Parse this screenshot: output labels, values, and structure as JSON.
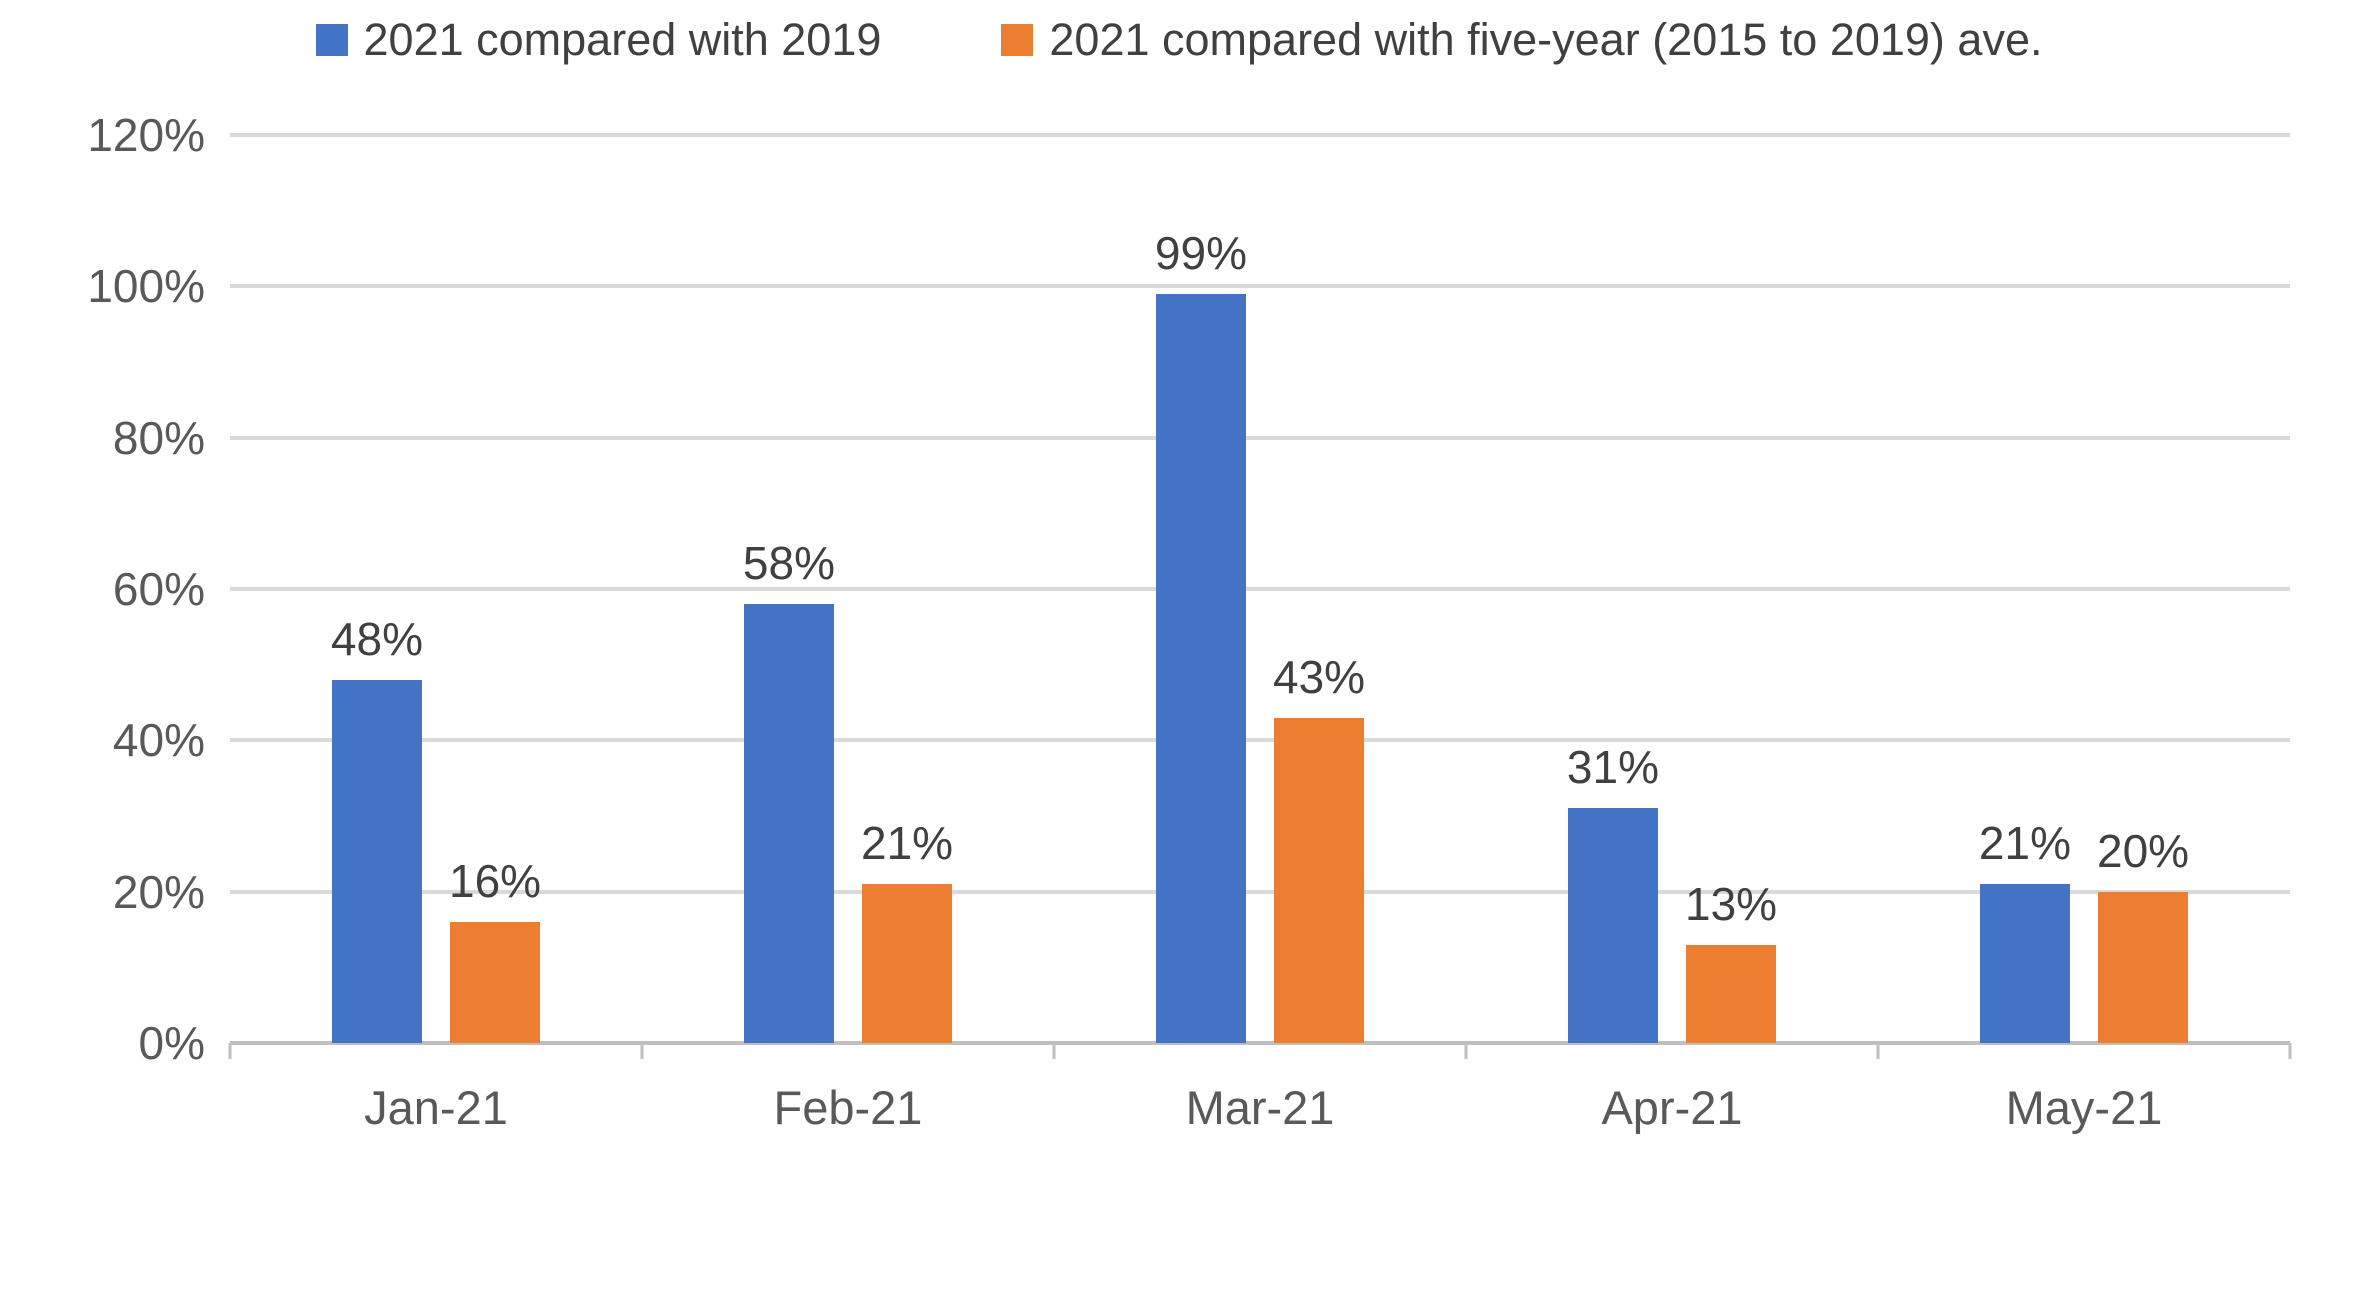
{
  "chart_data": {
    "type": "bar",
    "title": "",
    "xlabel": "",
    "ylabel": "",
    "categories": [
      "Jan-21",
      "Feb-21",
      "Mar-21",
      "Apr-21",
      "May-21"
    ],
    "series": [
      {
        "name": "2021 compared with 2019",
        "color": "#4472C4",
        "values": [
          48,
          58,
          99,
          31,
          21
        ],
        "data_labels": [
          "48%",
          "58%",
          "99%",
          "31%",
          "21%"
        ]
      },
      {
        "name": "2021 compared with five-year (2015 to 2019) ave.",
        "color": "#ED7D31",
        "values": [
          16,
          21,
          43,
          13,
          20
        ],
        "data_labels": [
          "16%",
          "21%",
          "43%",
          "13%",
          "20%"
        ]
      }
    ],
    "ylim": [
      0,
      120
    ],
    "ytick_step": 20,
    "ytick_labels": [
      "0%",
      "20%",
      "40%",
      "60%",
      "80%",
      "100%",
      "120%"
    ],
    "grid": true,
    "legend_position": "top",
    "value_suffix": "%"
  },
  "colors": {
    "series1": "#4472C4",
    "series2": "#ED7D31",
    "gridline": "#D9D9D9",
    "axis_line": "#BFBFBF",
    "axis_text": "#595959",
    "data_label_text": "#404040",
    "background": "#FFFFFF"
  }
}
